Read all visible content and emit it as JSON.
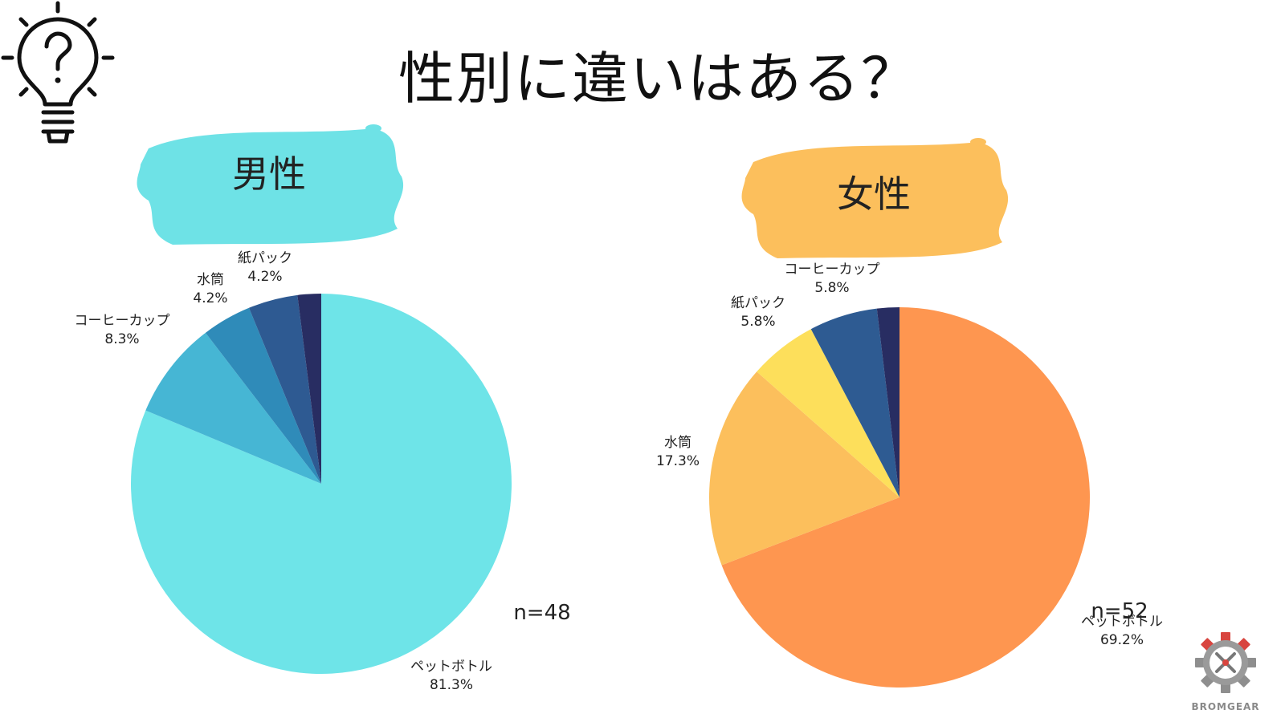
{
  "page": {
    "title": "性別に違いはある？",
    "brand": "BROMGEAR"
  },
  "chart_data": [
    {
      "type": "pie",
      "title": "男性",
      "n_label": "n=48",
      "start_angle_deg": 0,
      "badge_color": "#6ee2e6",
      "slices": [
        {
          "label": "ペットボトル",
          "value": 81.3,
          "value_label": "81.3%",
          "color": "#6ee4e8"
        },
        {
          "label": "コーヒーカップ",
          "value": 8.3,
          "value_label": "8.3%",
          "color": "#46b6d4"
        },
        {
          "label": "水筒",
          "value": 4.2,
          "value_label": "4.2%",
          "color": "#2f8bb9"
        },
        {
          "label": "紙パック",
          "value": 4.2,
          "value_label": "4.2%",
          "color": "#2e5a92"
        },
        {
          "label": "",
          "value": 2.0,
          "value_label": "",
          "color": "#282d62"
        }
      ]
    },
    {
      "type": "pie",
      "title": "女性",
      "n_label": "n=52",
      "start_angle_deg": 0,
      "badge_color": "#fcbf5c",
      "slices": [
        {
          "label": "ペットボトル",
          "value": 69.2,
          "value_label": "69.2%",
          "color": "#fe9650"
        },
        {
          "label": "水筒",
          "value": 17.3,
          "value_label": "17.3%",
          "color": "#fcbf5c"
        },
        {
          "label": "紙パック",
          "value": 5.8,
          "value_label": "5.8%",
          "color": "#fddf5b"
        },
        {
          "label": "コーヒーカップ",
          "value": 5.8,
          "value_label": "5.8%",
          "color": "#2e5b92"
        },
        {
          "label": "",
          "value": 1.9,
          "value_label": "",
          "color": "#282d62"
        }
      ]
    }
  ]
}
